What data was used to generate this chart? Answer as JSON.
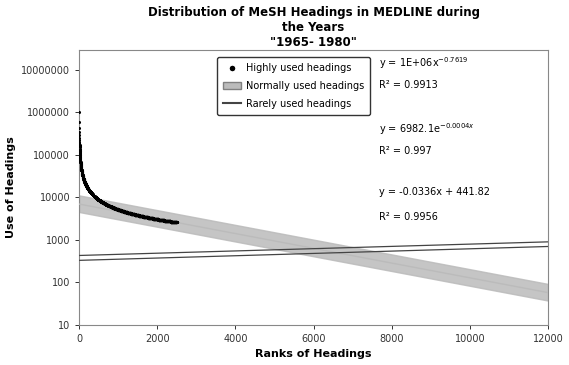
{
  "title_line1": "Distribution of MeSH Headings in MEDLINE during",
  "title_line2": "the Years",
  "title_line3": "\"1965- 1980\"",
  "xlabel": "Ranks of Headings",
  "ylabel": "Use of Headings",
  "xlim": [
    0,
    12000
  ],
  "ylim_log": [
    10,
    30000000
  ],
  "xticks": [
    0,
    2000,
    4000,
    6000,
    8000,
    10000,
    12000
  ],
  "power_law_coeff": 1000000,
  "power_law_exp": -0.7619,
  "exp_coeff": 6982.1,
  "exp_rate": -0.0004,
  "scatter_x_max": 2500,
  "scatter_color": "#000000",
  "gray_band_color": "#bbbbbb",
  "rare_line_color": "#444444",
  "r2_1": "R² = 0.9913",
  "r2_2": "R² = 0.997",
  "r2_3": "R² = 0.9956",
  "legend_scatter": "Highly used headings",
  "legend_gray": "Normally used headings",
  "legend_rare": "Rarely used headings",
  "background_color": "#ffffff",
  "rare_upper_y0": 430,
  "rare_upper_y1": 900,
  "rare_lower_y0": 330,
  "rare_lower_y1": 700,
  "band_upper_factor": 1.6,
  "band_lower_factor": 0.65
}
